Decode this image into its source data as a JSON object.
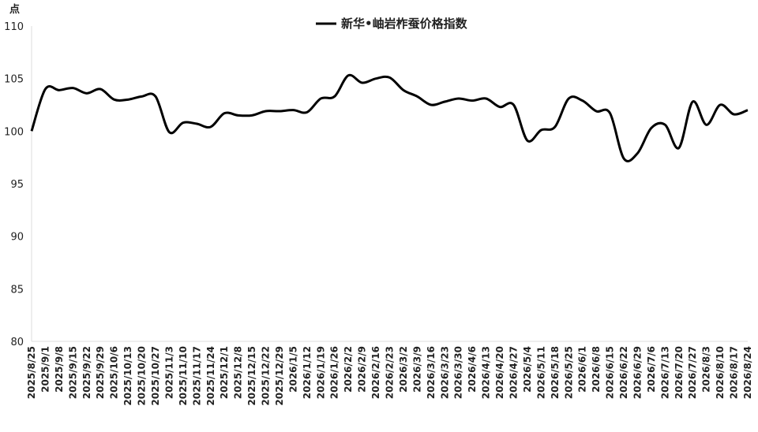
{
  "chart_data": {
    "type": "line",
    "y_label": "点",
    "categories": [
      "2025/8/25",
      "2025/9/1",
      "2025/9/8",
      "2025/9/15",
      "2025/9/22",
      "2025/9/29",
      "2025/10/6",
      "2025/10/13",
      "2025/10/20",
      "2025/10/27",
      "2025/11/3",
      "2025/11/10",
      "2025/11/17",
      "2025/11/24",
      "2025/12/1",
      "2025/12/8",
      "2025/12/15",
      "2025/12/22",
      "2025/12/29",
      "2026/1/5",
      "2026/1/12",
      "2026/1/19",
      "2026/1/26",
      "2026/2/2",
      "2026/2/9",
      "2026/2/16",
      "2026/2/23",
      "2026/3/2",
      "2026/3/9",
      "2026/3/16",
      "2026/3/23",
      "2026/3/30",
      "2026/4/6",
      "2026/4/13",
      "2026/4/20",
      "2026/4/27",
      "2026/5/4",
      "2026/5/11",
      "2026/5/18",
      "2026/5/25",
      "2026/6/1",
      "2026/6/8",
      "2026/6/15",
      "2026/6/22",
      "2026/6/29",
      "2026/7/6",
      "2026/7/13",
      "2026/7/20",
      "2026/7/27",
      "2026/8/3",
      "2026/8/10",
      "2026/8/17",
      "2026/8/24"
    ],
    "series": [
      {
        "name": "新华•岫岩柞蚕价格指数",
        "color": "#000000",
        "values": [
          100,
          104,
          103.9,
          104.1,
          103.6,
          104,
          103,
          103,
          103.3,
          103.3,
          99.9,
          100.8,
          100.7,
          100.4,
          101.7,
          101.5,
          101.5,
          101.9,
          101.9,
          102,
          101.8,
          103.1,
          103.3,
          105.3,
          104.6,
          105,
          105.1,
          103.9,
          103.3,
          102.5,
          102.8,
          103.1,
          102.9,
          103.1,
          102.3,
          102.5,
          99.1,
          100.1,
          100.4,
          103.1,
          102.9,
          101.9,
          101.7,
          97.4,
          97.9,
          100.3,
          100.6,
          98.4,
          102.8,
          100.6,
          102.5,
          101.6,
          102
        ]
      }
    ],
    "ylim": [
      80,
      110
    ],
    "yticks": [
      80,
      85,
      90,
      95,
      100,
      105,
      110
    ],
    "grid": false,
    "legend": "top",
    "smooth": true
  }
}
